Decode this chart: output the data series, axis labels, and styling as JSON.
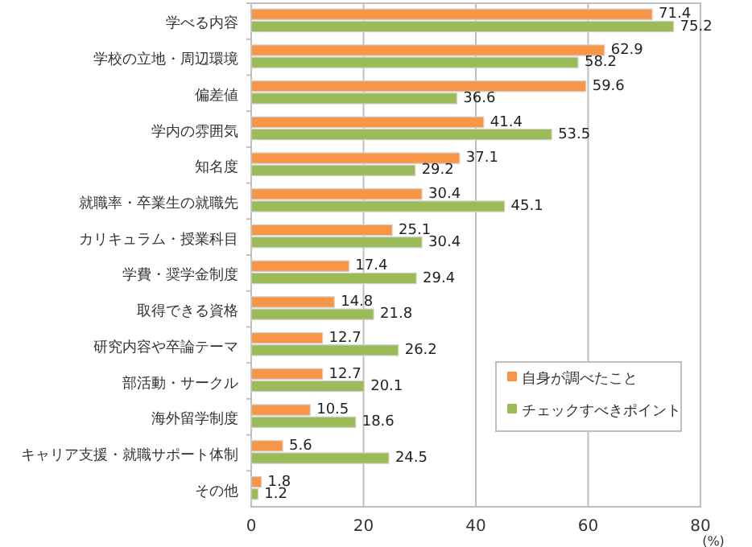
{
  "chart_data": {
    "type": "bar",
    "orientation": "horizontal",
    "xlabel": "(%)",
    "categories": [
      "学べる内容",
      "学校の立地・周辺環境",
      "偏差値",
      "学内の雰囲気",
      "知名度",
      "就職率・卒業生の就職先",
      "カリキュラム・授業科目",
      "学費・奨学金制度",
      "取得できる資格",
      "研究内容や卒論テーマ",
      "部活動・サークル",
      "海外留学制度",
      "キャリア支援・就職サポート体制",
      "その他"
    ],
    "series": [
      {
        "name": "自身が調べたこと",
        "color": "#f79646",
        "values": [
          71.4,
          62.9,
          59.6,
          41.4,
          37.1,
          30.4,
          25.1,
          17.4,
          14.8,
          12.7,
          12.7,
          10.5,
          5.6,
          1.8
        ]
      },
      {
        "name": "チェックすべきポイント",
        "color": "#9bbb59",
        "values": [
          75.2,
          58.2,
          36.6,
          53.5,
          29.2,
          45.1,
          30.4,
          29.4,
          21.8,
          26.2,
          20.1,
          18.6,
          24.5,
          1.2
        ]
      }
    ],
    "xlim": [
      0,
      80
    ],
    "xticks": [
      0,
      20,
      40,
      60,
      80
    ],
    "grid": "x",
    "legend": "bottom right",
    "data_labels": true
  }
}
